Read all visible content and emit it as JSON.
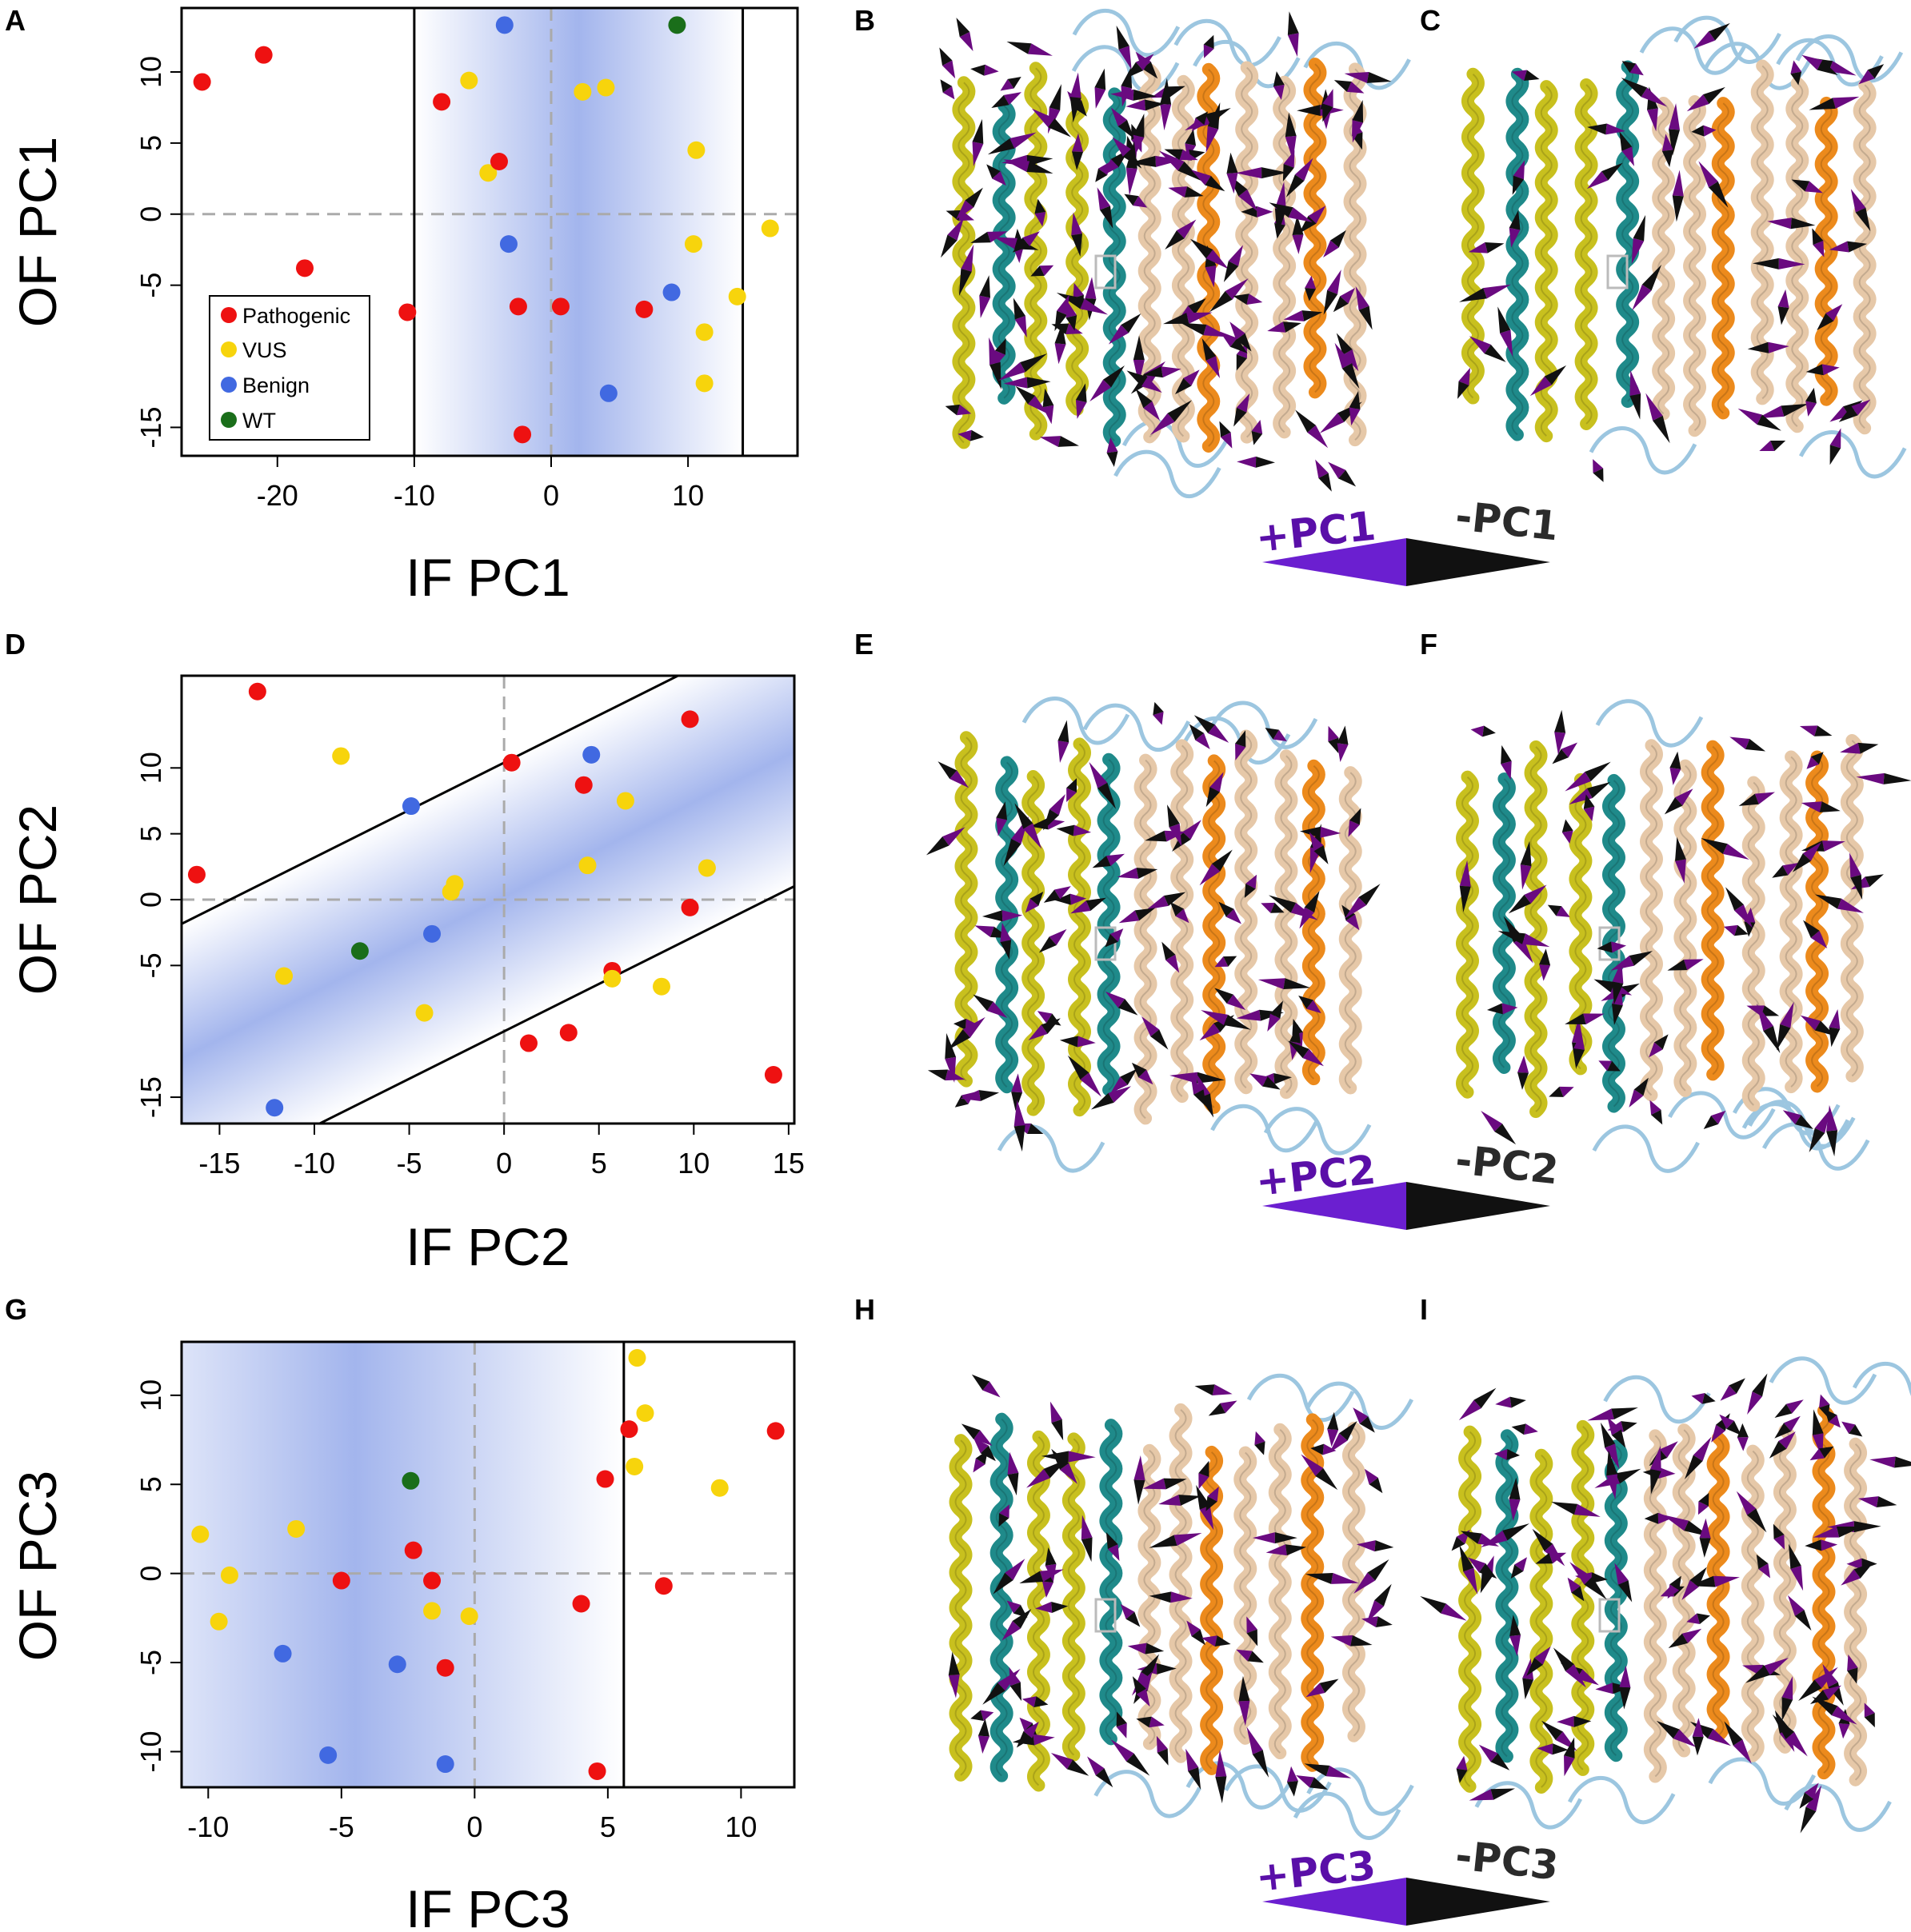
{
  "colors": {
    "pathogenic": "#ee1111",
    "vus": "#f7d40c",
    "benign": "#4169e1",
    "wt": "#1a6e1a",
    "band": "#9eb1ec",
    "helix_yellow": "#c8c01e",
    "helix_teal": "#1f8a8a",
    "helix_tan": "#e6c8a8",
    "helix_orange": "#ec8a1c",
    "loop_blue": "#9cc6e0",
    "arrow_plus": "#6a0a80",
    "arrow_minus": "#111111",
    "pc_plus_text": "#5a0fa8"
  },
  "legend": [
    "Pathogenic",
    "VUS",
    "Benign",
    "WT"
  ],
  "structure_panels": [
    {
      "letter": "B",
      "icon": "protein-structure-pc1-front",
      "density": 1.0
    },
    {
      "letter": "C",
      "icon": "protein-structure-pc1-back",
      "density": 0.35
    },
    {
      "letter": "E",
      "icon": "protein-structure-pc2-front",
      "density": 0.6
    },
    {
      "letter": "F",
      "icon": "protein-structure-pc2-back",
      "density": 0.45
    },
    {
      "letter": "H",
      "icon": "protein-structure-pc3-front",
      "density": 0.55
    },
    {
      "letter": "I",
      "icon": "protein-structure-pc3-back",
      "density": 0.7
    }
  ],
  "pc_legends": [
    {
      "plus": "+PC1",
      "minus": "-PC1"
    },
    {
      "plus": "+PC2",
      "minus": "-PC2"
    },
    {
      "plus": "+PC3",
      "minus": "-PC3"
    }
  ],
  "chart_data": [
    {
      "type": "scatter",
      "panel": "A",
      "xlabel": "IF PC1",
      "ylabel": "OF PC1",
      "xlim": [
        -27,
        18
      ],
      "ylim": [
        -17,
        14.5
      ],
      "xticks": [
        "-20",
        "-10",
        "0",
        "10"
      ],
      "xtick_values": [
        -20,
        -10,
        0,
        10
      ],
      "yticks": [
        "-15",
        "-5",
        "0",
        "5",
        "10"
      ],
      "ytick_values": [
        -15,
        -5,
        0,
        5,
        10
      ],
      "band": {
        "kind": "vertical",
        "from": -10,
        "to": 14,
        "peak": 2
      },
      "boundary_lines": [
        {
          "orientation": "vertical",
          "x": -10
        },
        {
          "orientation": "vertical",
          "x": 14
        }
      ],
      "legend_position": "bottom-left",
      "points": [
        {
          "x": -25.5,
          "y": 9.3,
          "cls": "pathogenic"
        },
        {
          "x": -21,
          "y": 11.2,
          "cls": "pathogenic"
        },
        {
          "x": -18,
          "y": -3.8,
          "cls": "pathogenic"
        },
        {
          "x": -10.5,
          "y": -6.9,
          "cls": "pathogenic"
        },
        {
          "x": -8,
          "y": 7.9,
          "cls": "pathogenic"
        },
        {
          "x": -6,
          "y": 9.4,
          "cls": "vus"
        },
        {
          "x": -4.6,
          "y": 2.9,
          "cls": "vus"
        },
        {
          "x": -3.8,
          "y": 3.7,
          "cls": "pathogenic"
        },
        {
          "x": -3.4,
          "y": 13.3,
          "cls": "benign"
        },
        {
          "x": -3.1,
          "y": -2.1,
          "cls": "benign"
        },
        {
          "x": -2.4,
          "y": -6.5,
          "cls": "pathogenic"
        },
        {
          "x": -2.1,
          "y": -15.5,
          "cls": "pathogenic"
        },
        {
          "x": 0.7,
          "y": -6.5,
          "cls": "pathogenic"
        },
        {
          "x": 2.3,
          "y": 8.6,
          "cls": "vus"
        },
        {
          "x": 4,
          "y": 8.9,
          "cls": "vus"
        },
        {
          "x": 4.2,
          "y": -12.6,
          "cls": "benign"
        },
        {
          "x": 6.8,
          "y": -6.7,
          "cls": "pathogenic"
        },
        {
          "x": 8.8,
          "y": -5.5,
          "cls": "benign"
        },
        {
          "x": 9.2,
          "y": 13.3,
          "cls": "wt"
        },
        {
          "x": 10.4,
          "y": -2.1,
          "cls": "vus"
        },
        {
          "x": 10.6,
          "y": 4.5,
          "cls": "vus"
        },
        {
          "x": 11.2,
          "y": -8.3,
          "cls": "vus"
        },
        {
          "x": 11.2,
          "y": -11.9,
          "cls": "vus"
        },
        {
          "x": 13.6,
          "y": -5.8,
          "cls": "vus"
        },
        {
          "x": 16,
          "y": -1,
          "cls": "vus"
        }
      ]
    },
    {
      "type": "scatter",
      "panel": "D",
      "xlabel": "IF PC2",
      "ylabel": "OF PC2",
      "xlim": [
        -17,
        15.3
      ],
      "ylim": [
        -17,
        17
      ],
      "xticks": [
        "-15",
        "-10",
        "-5",
        "0",
        "5",
        "10",
        "15"
      ],
      "xtick_values": [
        -15,
        -10,
        -5,
        0,
        5,
        10,
        15
      ],
      "yticks": [
        "-15",
        "-5",
        "0",
        "5",
        "10"
      ],
      "ytick_values": [
        -15,
        -5,
        0,
        5,
        10
      ],
      "band": {
        "kind": "diagonal",
        "slope": 0.72,
        "intercept_low": -10,
        "intercept_high": 10.4
      },
      "boundary_lines": [
        {
          "orientation": "diagonal",
          "slope": 0.72,
          "intercept": 10.4
        },
        {
          "orientation": "diagonal",
          "slope": 0.72,
          "intercept": -10
        }
      ],
      "points": [
        {
          "x": -16.2,
          "y": 1.9,
          "cls": "pathogenic"
        },
        {
          "x": -13,
          "y": 15.8,
          "cls": "pathogenic"
        },
        {
          "x": -12.1,
          "y": -15.8,
          "cls": "benign"
        },
        {
          "x": -11.6,
          "y": -5.8,
          "cls": "vus"
        },
        {
          "x": -8.6,
          "y": 10.9,
          "cls": "vus"
        },
        {
          "x": -7.6,
          "y": -3.9,
          "cls": "wt"
        },
        {
          "x": -4.9,
          "y": 7.1,
          "cls": "benign"
        },
        {
          "x": -4.2,
          "y": -8.6,
          "cls": "vus"
        },
        {
          "x": -3.8,
          "y": -2.6,
          "cls": "benign"
        },
        {
          "x": -2.8,
          "y": 0.6,
          "cls": "vus"
        },
        {
          "x": -2.6,
          "y": 1.2,
          "cls": "vus"
        },
        {
          "x": 0.4,
          "y": 10.4,
          "cls": "pathogenic"
        },
        {
          "x": 1.3,
          "y": -10.9,
          "cls": "pathogenic"
        },
        {
          "x": 3.4,
          "y": -10.1,
          "cls": "pathogenic"
        },
        {
          "x": 4.2,
          "y": 8.7,
          "cls": "pathogenic"
        },
        {
          "x": 4.4,
          "y": 2.6,
          "cls": "vus"
        },
        {
          "x": 4.6,
          "y": 11,
          "cls": "benign"
        },
        {
          "x": 5.7,
          "y": -5.4,
          "cls": "pathogenic"
        },
        {
          "x": 5.7,
          "y": -6,
          "cls": "vus"
        },
        {
          "x": 6.4,
          "y": 7.5,
          "cls": "vus"
        },
        {
          "x": 8.3,
          "y": -6.6,
          "cls": "vus"
        },
        {
          "x": 9.8,
          "y": -0.6,
          "cls": "pathogenic"
        },
        {
          "x": 9.8,
          "y": 13.7,
          "cls": "pathogenic"
        },
        {
          "x": 10.7,
          "y": 2.4,
          "cls": "vus"
        },
        {
          "x": 14.2,
          "y": -13.3,
          "cls": "pathogenic"
        }
      ]
    },
    {
      "type": "scatter",
      "panel": "G",
      "xlabel": "IF PC3",
      "ylabel": "OF PC3",
      "xlim": [
        -11,
        12
      ],
      "ylim": [
        -12,
        13
      ],
      "xticks": [
        "-10",
        "-5",
        "0",
        "5",
        "10"
      ],
      "xtick_values": [
        -10,
        -5,
        0,
        5,
        10
      ],
      "yticks": [
        "-10",
        "-5",
        "0",
        "5",
        "10"
      ],
      "ytick_values": [
        -10,
        -5,
        0,
        5,
        10
      ],
      "band": {
        "kind": "vertical",
        "from": -11,
        "to": 5.6,
        "peak": -4.5
      },
      "boundary_lines": [
        {
          "orientation": "vertical",
          "x": 5.6
        }
      ],
      "points": [
        {
          "x": -10.3,
          "y": 2.2,
          "cls": "vus"
        },
        {
          "x": -9.6,
          "y": -2.7,
          "cls": "vus"
        },
        {
          "x": -9.2,
          "y": -0.1,
          "cls": "vus"
        },
        {
          "x": -7.2,
          "y": -4.5,
          "cls": "benign"
        },
        {
          "x": -6.7,
          "y": 2.5,
          "cls": "vus"
        },
        {
          "x": -5.5,
          "y": -10.2,
          "cls": "benign"
        },
        {
          "x": -5,
          "y": -0.4,
          "cls": "pathogenic"
        },
        {
          "x": -2.9,
          "y": -5.1,
          "cls": "benign"
        },
        {
          "x": -2.4,
          "y": 5.2,
          "cls": "wt"
        },
        {
          "x": -2.3,
          "y": 1.3,
          "cls": "pathogenic"
        },
        {
          "x": -1.6,
          "y": -0.4,
          "cls": "pathogenic"
        },
        {
          "x": -1.6,
          "y": -2.1,
          "cls": "vus"
        },
        {
          "x": -1.1,
          "y": -5.3,
          "cls": "pathogenic"
        },
        {
          "x": -1.1,
          "y": -10.7,
          "cls": "benign"
        },
        {
          "x": -0.2,
          "y": -2.4,
          "cls": "vus"
        },
        {
          "x": 4,
          "y": -1.7,
          "cls": "pathogenic"
        },
        {
          "x": 4.6,
          "y": -11.1,
          "cls": "pathogenic"
        },
        {
          "x": 4.9,
          "y": 5.3,
          "cls": "pathogenic"
        },
        {
          "x": 5.8,
          "y": 8.1,
          "cls": "pathogenic"
        },
        {
          "x": 6,
          "y": 6,
          "cls": "vus"
        },
        {
          "x": 6.1,
          "y": 12.1,
          "cls": "vus"
        },
        {
          "x": 6.4,
          "y": 9,
          "cls": "vus"
        },
        {
          "x": 7.1,
          "y": -0.7,
          "cls": "pathogenic"
        },
        {
          "x": 9.2,
          "y": 4.8,
          "cls": "vus"
        },
        {
          "x": 11.3,
          "y": 8,
          "cls": "pathogenic"
        }
      ]
    }
  ]
}
